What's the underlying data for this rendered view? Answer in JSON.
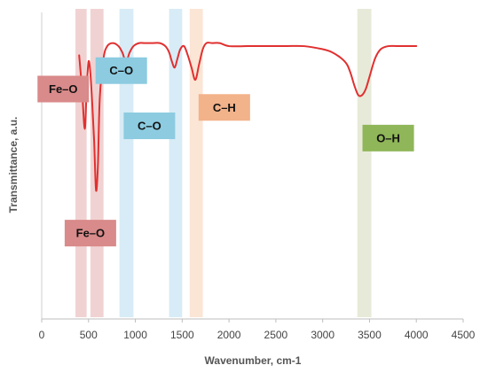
{
  "chart_data": {
    "type": "line",
    "title": "",
    "xlabel": "Wavenumber, cm-1",
    "ylabel": "Transmittance, a.u.",
    "xlim": [
      0,
      4500
    ],
    "ylim": [
      0,
      100
    ],
    "x_ticks": [
      0,
      500,
      1000,
      1500,
      2000,
      2500,
      3000,
      3500,
      4000,
      4500
    ],
    "grid": false,
    "legend": "none",
    "line_color": "#e03030",
    "series": [
      {
        "x": [
          400,
          430,
          460,
          480,
          500,
          520,
          540,
          560,
          580,
          600,
          620,
          660,
          700,
          760,
          820,
          860,
          900,
          940,
          980,
          1040,
          1100,
          1180,
          1260,
          1320,
          1360,
          1390,
          1420,
          1450,
          1480,
          1520,
          1560,
          1600,
          1640,
          1680,
          1720,
          1760,
          1820,
          1900,
          2000,
          2200,
          2400,
          2600,
          2800,
          3000,
          3100,
          3200,
          3260,
          3300,
          3340,
          3380,
          3420,
          3460,
          3500,
          3560,
          3620,
          3700,
          3800,
          3900,
          4000
        ],
        "y": [
          86,
          75,
          62,
          75,
          84,
          80,
          70,
          58,
          42,
          50,
          72,
          85,
          89,
          90,
          89,
          87,
          84,
          87,
          89,
          90,
          90,
          90,
          90,
          89,
          87,
          84,
          82,
          85,
          88,
          89,
          86,
          82,
          78,
          83,
          88,
          90,
          90,
          90,
          89,
          89,
          89,
          89,
          89,
          88,
          87,
          85,
          83,
          80,
          76,
          73,
          73,
          75,
          79,
          85,
          88,
          89,
          89,
          89,
          89
        ]
      }
    ],
    "bands": [
      {
        "from": 360,
        "to": 480,
        "color": "#e8b4b4"
      },
      {
        "from": 520,
        "to": 660,
        "color": "#e8b4b4"
      },
      {
        "from": 830,
        "to": 980,
        "color": "#bcdff0"
      },
      {
        "from": 1360,
        "to": 1500,
        "color": "#bcdff0"
      },
      {
        "from": 1580,
        "to": 1720,
        "color": "#f8d4b8"
      },
      {
        "from": 3370,
        "to": 3520,
        "color": "#d8dcc0"
      }
    ],
    "annotations": [
      {
        "text": "Fe–O",
        "x": 230,
        "y": 75,
        "bg": "#d98a8a"
      },
      {
        "text": "Fe–O",
        "x": 520,
        "y": 28,
        "bg": "#d98a8a"
      },
      {
        "text": "C–O",
        "x": 850,
        "y": 81,
        "bg": "#8ccbe0"
      },
      {
        "text": "C–O",
        "x": 1150,
        "y": 63,
        "bg": "#8ccbe0"
      },
      {
        "text": "C–H",
        "x": 1950,
        "y": 69,
        "bg": "#f2b28a"
      },
      {
        "text": "O–H",
        "x": 3700,
        "y": 59,
        "bg": "#8fb658"
      }
    ]
  }
}
